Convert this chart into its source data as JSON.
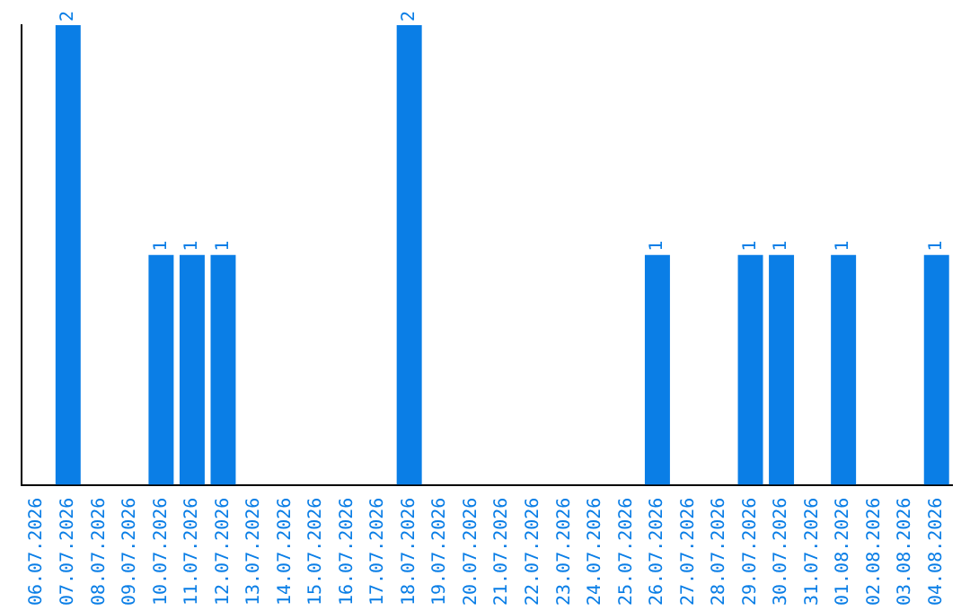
{
  "chart_data": {
    "type": "bar",
    "categories": [
      "06.07.2026",
      "07.07.2026",
      "08.07.2026",
      "09.07.2026",
      "10.07.2026",
      "11.07.2026",
      "12.07.2026",
      "13.07.2026",
      "14.07.2026",
      "15.07.2026",
      "16.07.2026",
      "17.07.2026",
      "18.07.2026",
      "19.07.2026",
      "20.07.2026",
      "21.07.2026",
      "22.07.2026",
      "23.07.2026",
      "24.07.2026",
      "25.07.2026",
      "26.07.2026",
      "27.07.2026",
      "28.07.2026",
      "29.07.2026",
      "30.07.2026",
      "31.07.2026",
      "01.08.2026",
      "02.08.2026",
      "03.08.2026",
      "04.08.2026"
    ],
    "values": [
      0,
      2,
      0,
      0,
      1,
      1,
      1,
      0,
      0,
      0,
      0,
      0,
      2,
      0,
      0,
      0,
      0,
      0,
      0,
      0,
      1,
      0,
      0,
      1,
      1,
      0,
      1,
      0,
      0,
      1
    ],
    "value_labels": [
      null,
      "2",
      null,
      null,
      "1",
      "1",
      "1",
      null,
      null,
      null,
      null,
      null,
      "2",
      null,
      null,
      null,
      null,
      null,
      null,
      null,
      "1",
      null,
      null,
      "1",
      "1",
      null,
      "1",
      null,
      null,
      "1"
    ],
    "color": "#0a7ee6"
  }
}
